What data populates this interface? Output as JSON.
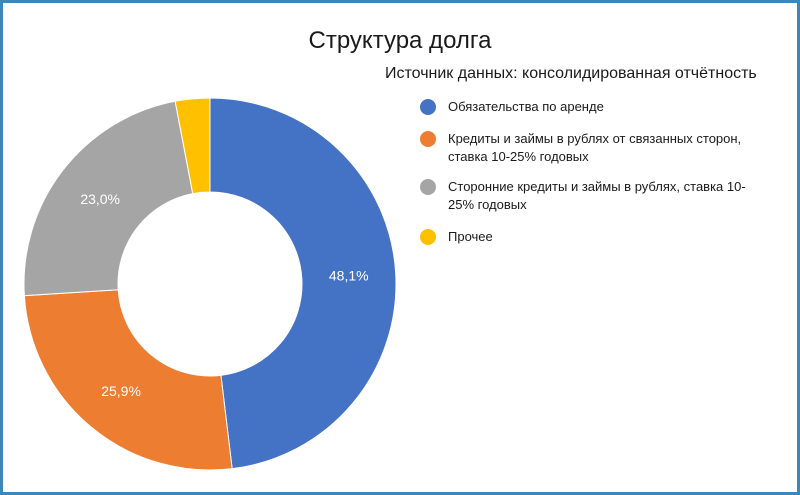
{
  "chart_data": {
    "type": "pie",
    "title": "Структура долга",
    "subtitle": "Источник данных: консолидированная отчётность",
    "categories": [
      "Обязательства по аренде",
      "Кредиты и займы в рублях от связанных сторон, ставка 10-25% годовых",
      "Сторонние кредиты и займы в рублях, ставка 10-25% годовых",
      "Прочее"
    ],
    "values": [
      48.1,
      25.9,
      23.0,
      3.0
    ],
    "value_labels": [
      "48,1%",
      "25,9%",
      "23,0%",
      ""
    ],
    "colors": [
      "#4472c4",
      "#ed7d31",
      "#a5a5a5",
      "#ffc000"
    ],
    "donut": true,
    "legend_position": "right"
  }
}
